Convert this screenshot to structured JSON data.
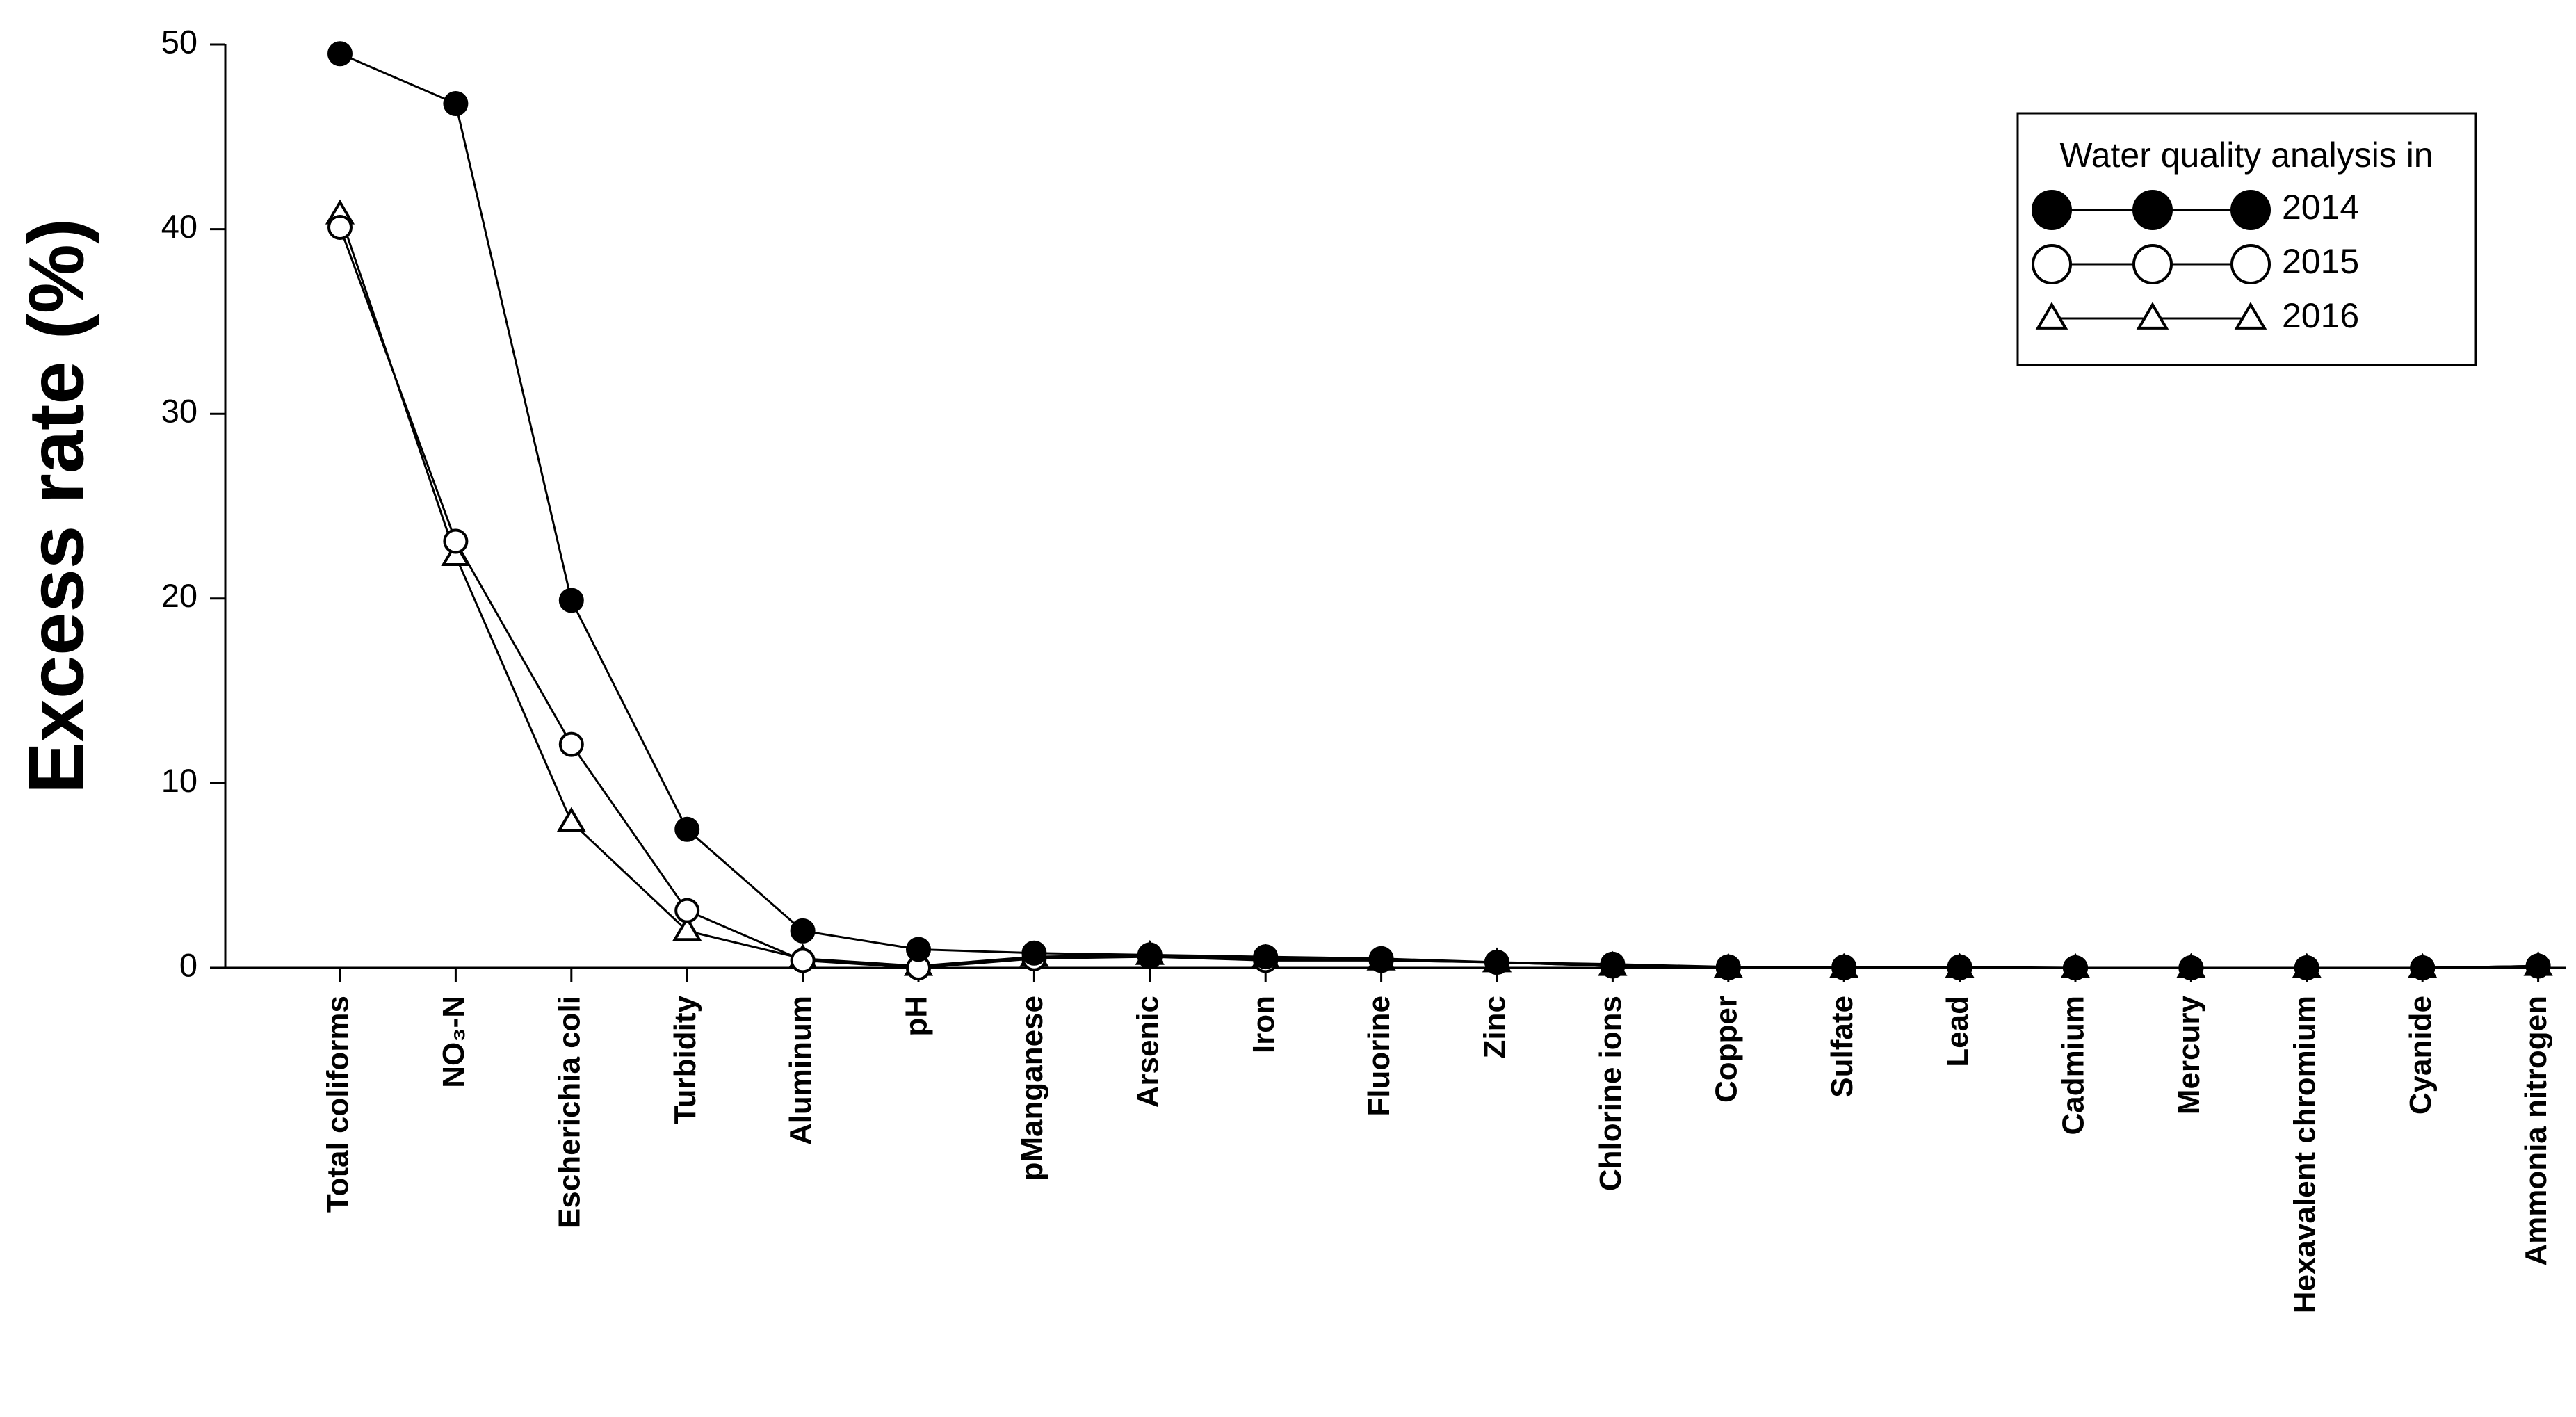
{
  "chart_data": {
    "type": "line",
    "y_label": "Excess rate (%)",
    "legend_title": "Water quality analysis in",
    "legend_position": "upper right",
    "categories": [
      "Total coliforms",
      "NO₃-N",
      "Escherichia coli",
      "Turbidity",
      "Aluminum",
      "pH",
      "pManganese",
      "Arsenic",
      "Iron",
      "Fluorine",
      "Zinc",
      "Chlorine ions",
      "Copper",
      "Sulfate",
      "Lead",
      "Cadmium",
      "Mercury",
      "Hexavalent chromium",
      "Cyanide",
      "Ammonia nitrogen"
    ],
    "series": [
      {
        "name": "2014",
        "color": "#000000",
        "marker": "filled-circle",
        "values": [
          49.5,
          46.8,
          19.9,
          7.5,
          2.0,
          1.0,
          0.8,
          0.7,
          0.6,
          0.5,
          0.3,
          0.2,
          0.05,
          0.05,
          0.05,
          0,
          0,
          0,
          0,
          0.1
        ]
      },
      {
        "name": "2015",
        "color": "#000000",
        "marker": "open-circle",
        "values": [
          40.1,
          23.1,
          12.1,
          3.1,
          0.4,
          0,
          0.5,
          0.6,
          0.4,
          0.4,
          0.3,
          0.1,
          0,
          0,
          0,
          0,
          0,
          0,
          0,
          0.1
        ]
      },
      {
        "name": "2016",
        "color": "#000000",
        "marker": "open-triangle",
        "values": [
          40.8,
          22.3,
          7.9,
          2.0,
          0.5,
          0.1,
          0.6,
          0.7,
          0.5,
          0.4,
          0.3,
          0.1,
          0,
          0,
          0,
          0,
          0,
          0,
          0,
          0.1
        ]
      }
    ],
    "ylim": [
      0,
      50
    ],
    "yticks": [
      0,
      10,
      20,
      30,
      40,
      50
    ],
    "grid": false
  }
}
